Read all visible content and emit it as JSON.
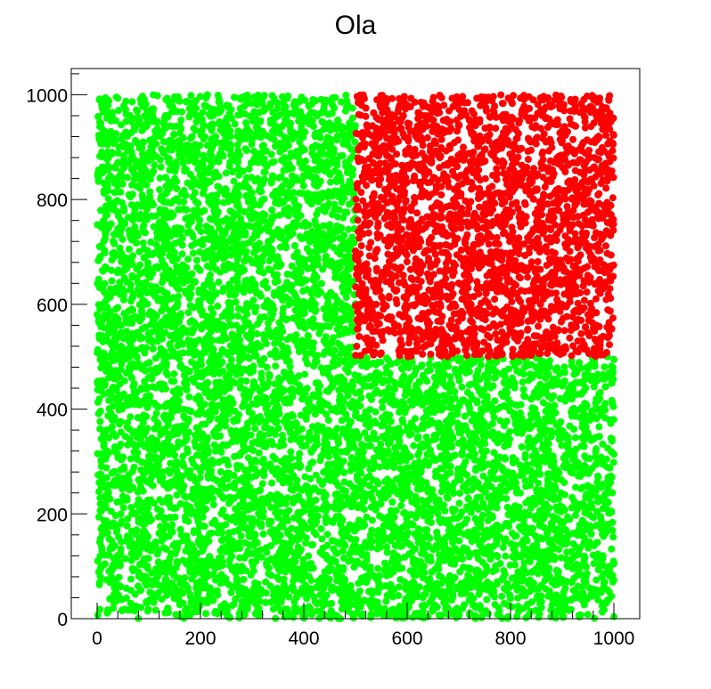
{
  "chart_data": {
    "type": "scatter",
    "title": "Ola",
    "xlabel": "",
    "ylabel": "",
    "xlim": [
      -50,
      1050
    ],
    "ylim": [
      0,
      1050
    ],
    "xticks": [
      0,
      200,
      400,
      600,
      800,
      1000
    ],
    "yticks": [
      0,
      200,
      400,
      600,
      800,
      1000
    ],
    "x_tick_labels": [
      "0",
      "200",
      "400",
      "600",
      "800",
      "1000"
    ],
    "y_tick_labels": [
      "0",
      "200",
      "400",
      "600",
      "800",
      "1000"
    ],
    "grid": false,
    "legend": "none",
    "series": [
      {
        "color": "#00ff00",
        "region": "outside x>500 and y>500",
        "x_range": [
          0,
          1000
        ],
        "y_range": [
          0,
          1000
        ],
        "approx_count": 7500,
        "points_sample": [
          [
            12,
            985
          ],
          [
            87,
            640
          ],
          [
            150,
            312
          ],
          [
            233,
            45
          ],
          [
            298,
            870
          ],
          [
            345,
            512
          ],
          [
            420,
            188
          ],
          [
            478,
            732
          ],
          [
            560,
            420
          ],
          [
            655,
            95
          ],
          [
            720,
            330
          ],
          [
            812,
            240
          ],
          [
            905,
            470
          ],
          [
            980,
            60
          ],
          [
            33,
            420
          ],
          [
            190,
            905
          ],
          [
            260,
            620
          ],
          [
            410,
            960
          ],
          [
            600,
            250
          ],
          [
            880,
            140
          ]
        ]
      },
      {
        "color": "#ff0000",
        "region": "x>500 and y>500",
        "x_range": [
          500,
          1000
        ],
        "y_range": [
          500,
          1000
        ],
        "approx_count": 2500,
        "points_sample": [
          [
            512,
            980
          ],
          [
            560,
            860
          ],
          [
            610,
            720
          ],
          [
            655,
            540
          ],
          [
            700,
            990
          ],
          [
            742,
            805
          ],
          [
            790,
            630
          ],
          [
            835,
            915
          ],
          [
            880,
            700
          ],
          [
            925,
            560
          ],
          [
            968,
            955
          ],
          [
            995,
            760
          ],
          [
            540,
            600
          ],
          [
            620,
            940
          ],
          [
            760,
            510
          ],
          [
            850,
            845
          ],
          [
            905,
            640
          ],
          [
            975,
            890
          ],
          [
            690,
            670
          ],
          [
            580,
            790
          ]
        ]
      }
    ]
  }
}
